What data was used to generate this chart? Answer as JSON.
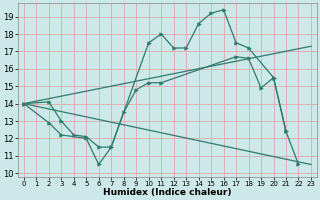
{
  "background_color": "#cce8e8",
  "grid_color": "#ddaaaa",
  "line_color": "#2e7b6e",
  "xlabel": "Humidex (Indice chaleur)",
  "xlim": [
    -0.5,
    23.5
  ],
  "ylim": [
    9.8,
    19.8
  ],
  "yticks": [
    10,
    11,
    12,
    13,
    14,
    15,
    16,
    17,
    18,
    19
  ],
  "xticks": [
    0,
    1,
    2,
    3,
    4,
    5,
    6,
    7,
    8,
    9,
    10,
    11,
    12,
    13,
    14,
    15,
    16,
    17,
    18,
    19,
    20,
    21,
    22,
    23
  ],
  "series": [
    {
      "x": [
        0,
        2,
        3,
        4,
        5,
        6,
        7,
        10,
        11,
        12,
        13,
        14,
        15,
        16,
        17,
        18,
        20,
        21
      ],
      "y": [
        14.0,
        14.1,
        13.0,
        12.2,
        12.1,
        11.5,
        11.5,
        17.5,
        18.0,
        17.2,
        17.2,
        18.6,
        19.2,
        19.4,
        17.5,
        17.2,
        15.5,
        12.4
      ],
      "marker": true,
      "linestyle": "-"
    },
    {
      "x": [
        0,
        2,
        3,
        5,
        6,
        7,
        8,
        9,
        10,
        11,
        17,
        18,
        19,
        20,
        21,
        22
      ],
      "y": [
        14.0,
        12.9,
        12.2,
        12.0,
        10.5,
        11.5,
        13.5,
        14.8,
        15.2,
        15.2,
        16.7,
        16.6,
        14.9,
        15.5,
        12.4,
        10.5
      ],
      "marker": true,
      "linestyle": "-"
    },
    {
      "x": [
        0,
        23
      ],
      "y": [
        14.0,
        17.3
      ],
      "marker": false,
      "linestyle": "-"
    },
    {
      "x": [
        0,
        23
      ],
      "y": [
        14.0,
        10.5
      ],
      "marker": false,
      "linestyle": "-"
    }
  ]
}
